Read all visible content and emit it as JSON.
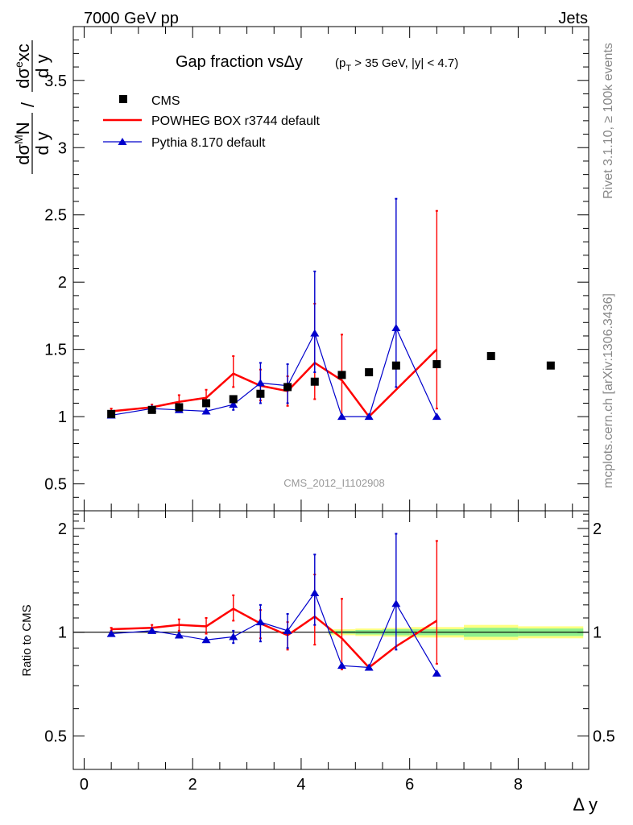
{
  "header": {
    "left": "7000 GeV pp",
    "right": "Jets"
  },
  "side_labels": {
    "rivet": "Rivet 3.1.10, ≥ 100k events",
    "mcplots": "mcplots.cern.ch [arXiv:1306.3436]"
  },
  "colors": {
    "data": "#000000",
    "powheg": "#ff0000",
    "pythia": "#0000cc",
    "band_inner": "#8ef08e",
    "band_outer": "#ffff80"
  },
  "chart_data": [
    {
      "type": "line",
      "title": "Gap fraction vsΔy",
      "title_cuts": "(p_T > 35 GeV, |y| < 4.7)",
      "ylabel": "dσ^M N / dσ^e xc (d y)",
      "watermark": "CMS_2012_I1102908",
      "xlim": [
        -0.2,
        9.3
      ],
      "ylim": [
        0.3,
        3.9
      ],
      "yticks": [
        0.5,
        1,
        1.5,
        2,
        2.5,
        3,
        3.5
      ],
      "yticklabels": [
        "0.5",
        "1",
        "1.5",
        "2",
        "2.5",
        "3",
        "3.5"
      ],
      "legend": [
        "CMS",
        "POWHEG BOX r3744 default",
        "Pythia 8.170 default"
      ],
      "series": [
        {
          "name": "CMS",
          "x": [
            0.5,
            1.25,
            1.75,
            2.25,
            2.75,
            3.25,
            3.75,
            4.25,
            4.75,
            5.25,
            5.75,
            6.5,
            7.5,
            8.6
          ],
          "y": [
            1.02,
            1.05,
            1.07,
            1.1,
            1.13,
            1.17,
            1.22,
            1.26,
            1.31,
            1.33,
            1.38,
            1.39,
            1.45,
            1.38
          ]
        },
        {
          "name": "POWHEG BOX r3744 default",
          "x": [
            0.5,
            1.25,
            1.75,
            2.25,
            2.75,
            3.25,
            3.75,
            4.25,
            4.75,
            5.25,
            5.75,
            6.5
          ],
          "y": [
            1.04,
            1.07,
            1.11,
            1.14,
            1.32,
            1.23,
            1.19,
            1.4,
            1.27,
            1.0,
            1.2,
            1.5
          ],
          "err_lo": [
            1.03,
            1.05,
            1.07,
            1.09,
            1.22,
            1.12,
            1.08,
            1.13,
            1.0,
            1.0,
            1.2,
            1.06
          ],
          "err_hi": [
            1.06,
            1.09,
            1.16,
            1.2,
            1.45,
            1.35,
            1.3,
            1.84,
            1.61,
            1.0,
            1.2,
            2.53
          ]
        },
        {
          "name": "Pythia 8.170 default",
          "x": [
            0.5,
            1.25,
            1.75,
            2.25,
            2.75,
            3.25,
            3.75,
            4.25,
            4.75,
            5.25,
            5.75,
            6.5
          ],
          "y": [
            1.01,
            1.06,
            1.05,
            1.04,
            1.09,
            1.25,
            1.23,
            1.62,
            1.0,
            1.0,
            1.66,
            1.0
          ],
          "err_lo": [
            1.0,
            1.05,
            1.04,
            1.03,
            1.05,
            1.1,
            1.1,
            1.33,
            1.0,
            1.0,
            1.22,
            1.0
          ],
          "err_hi": [
            1.02,
            1.07,
            1.07,
            1.05,
            1.13,
            1.4,
            1.39,
            2.08,
            1.0,
            1.0,
            2.62,
            1.0
          ]
        }
      ]
    },
    {
      "type": "line",
      "ylabel": "Ratio to CMS",
      "xlabel": "Δ y",
      "xlim": [
        -0.2,
        9.3
      ],
      "ylim": [
        0.4,
        2.25
      ],
      "yscale": "log",
      "xticks": [
        0,
        2,
        4,
        6,
        8
      ],
      "xticklabels": [
        "0",
        "2",
        "4",
        "6",
        "8"
      ],
      "yticks": [
        0.5,
        1,
        2
      ],
      "yticklabels": [
        "0.5",
        "1",
        "2"
      ],
      "band": {
        "x_edges": [
          4.5,
          5.0,
          5.5,
          6.0,
          7.0,
          8.0,
          9.2
        ],
        "inner": [
          [
            0.99,
            1.01
          ],
          [
            0.985,
            1.015
          ],
          [
            0.98,
            1.02
          ],
          [
            0.98,
            1.02
          ],
          [
            0.97,
            1.03
          ],
          [
            0.975,
            1.025
          ]
        ],
        "outer": [
          [
            0.98,
            1.02
          ],
          [
            0.975,
            1.025
          ],
          [
            0.97,
            1.03
          ],
          [
            0.965,
            1.035
          ],
          [
            0.95,
            1.05
          ],
          [
            0.96,
            1.04
          ]
        ]
      },
      "series": [
        {
          "name": "POWHEG BOX r3744 default",
          "x": [
            0.5,
            1.25,
            1.75,
            2.25,
            2.75,
            3.25,
            3.75,
            4.25,
            4.75,
            5.25,
            5.75,
            6.5
          ],
          "y": [
            1.02,
            1.03,
            1.05,
            1.04,
            1.17,
            1.06,
            0.98,
            1.11,
            0.96,
            0.79,
            0.91,
            1.08
          ],
          "err_lo": [
            1.01,
            1.01,
            1.01,
            0.99,
            1.08,
            0.96,
            0.89,
            0.92,
            0.78,
            0.79,
            0.91,
            0.81
          ],
          "err_hi": [
            1.03,
            1.05,
            1.09,
            1.1,
            1.28,
            1.16,
            1.07,
            1.47,
            1.25,
            0.79,
            0.91,
            1.84
          ]
        },
        {
          "name": "Pythia 8.170 default",
          "x": [
            0.5,
            1.25,
            1.75,
            2.25,
            2.75,
            3.25,
            3.75,
            4.25,
            4.75,
            5.25,
            5.75,
            6.5
          ],
          "y": [
            0.99,
            1.01,
            0.98,
            0.95,
            0.97,
            1.07,
            1.01,
            1.3,
            0.8,
            0.79,
            1.21,
            0.76
          ],
          "err_lo": [
            0.98,
            1.0,
            0.97,
            0.94,
            0.93,
            0.94,
            0.9,
            1.05,
            0.8,
            0.79,
            0.89,
            0.76
          ],
          "err_hi": [
            1.0,
            1.02,
            0.99,
            0.96,
            1.01,
            1.2,
            1.13,
            1.68,
            0.8,
            0.79,
            1.93,
            0.76
          ]
        }
      ]
    }
  ]
}
